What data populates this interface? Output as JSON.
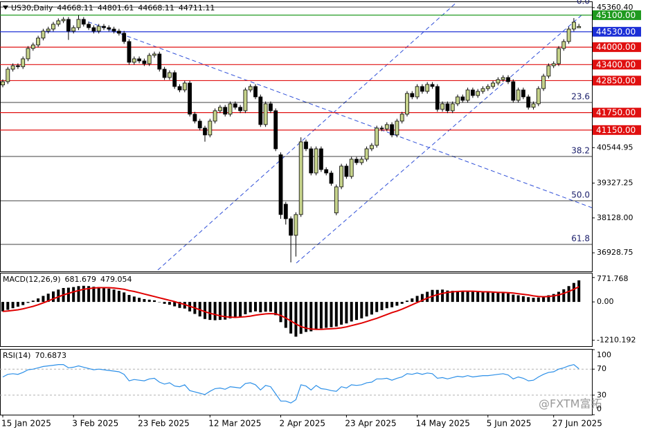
{
  "chart_data": [
    {
      "type": "candlestick",
      "title": "US30,Daily",
      "readout": [
        44668.11,
        44801.61,
        44668.11,
        44711.11
      ],
      "categories": [
        "15 Jan 2025",
        null,
        null,
        null,
        null,
        null,
        null,
        null,
        null,
        null,
        null,
        null,
        null,
        null,
        "3 Feb 2025",
        null,
        null,
        null,
        null,
        null,
        null,
        null,
        null,
        null,
        null,
        null,
        null,
        "23 Feb 2025",
        null,
        null,
        null,
        null,
        null,
        null,
        null,
        null,
        null,
        null,
        null,
        null,
        null,
        "12 Mar 2025",
        null,
        null,
        null,
        null,
        null,
        null,
        null,
        null,
        null,
        null,
        null,
        null,
        null,
        "2 Apr 2025",
        null,
        null,
        null,
        null,
        null,
        null,
        null,
        null,
        null,
        null,
        null,
        null,
        "23 Apr 2025",
        null,
        null,
        null,
        null,
        null,
        null,
        null,
        null,
        null,
        null,
        null,
        null,
        null,
        "14 May 2025",
        null,
        null,
        null,
        null,
        null,
        null,
        null,
        null,
        null,
        null,
        null,
        null,
        null,
        "5 Jun 2025",
        null,
        null,
        null,
        null,
        null,
        null,
        null,
        null,
        null,
        null,
        null,
        null,
        "27 Jun 2025",
        null,
        null,
        null,
        null,
        null
      ],
      "open": [
        42700,
        42813,
        43242,
        43361,
        43330,
        43599,
        43956,
        44075,
        44313,
        44551,
        44622,
        44789,
        44908,
        44955,
        44551,
        44670,
        44955,
        44789,
        44670,
        44551,
        44717,
        44670,
        44622,
        44551,
        44479,
        44194,
        43480,
        43599,
        43527,
        43432,
        43718,
        43765,
        43242,
        42956,
        43123,
        42647,
        42528,
        42766,
        41695,
        41457,
        41219,
        40981,
        41457,
        41814,
        41933,
        41695,
        42052,
        41933,
        41814,
        42528,
        42647,
        42290,
        41338,
        42052,
        41814,
        40300,
        38600,
        38100,
        37530,
        38244,
        40743,
        40505,
        39672,
        40505,
        39791,
        39672,
        38300,
        39196,
        39910,
        39553,
        40148,
        40029,
        40148,
        40505,
        40624,
        41219,
        41190,
        41338,
        40981,
        41457,
        41695,
        42409,
        42290,
        42647,
        42480,
        42718,
        42647,
        41861,
        42052,
        41814,
        42052,
        42290,
        42171,
        42528,
        42337,
        42480,
        42575,
        42647,
        42766,
        42885,
        42956,
        42813,
        42171,
        42528,
        42290,
        41933,
        42052,
        42575,
        43004,
        43361,
        43432,
        43956,
        44194,
        44622,
        44668.11
      ],
      "high": [
        42893,
        43322,
        43441,
        43441,
        43679,
        44036,
        44155,
        44393,
        44631,
        44702,
        44869,
        44988,
        45035,
        45035,
        44750,
        45100,
        45035,
        44869,
        44750,
        44797,
        44797,
        44750,
        44702,
        44631,
        44559,
        44274,
        43679,
        43679,
        43607,
        43798,
        43845,
        43845,
        43322,
        43203,
        43203,
        42727,
        42846,
        42846,
        41775,
        41537,
        41299,
        41537,
        41894,
        42013,
        42013,
        42132,
        42132,
        42013,
        42608,
        42727,
        42727,
        42370,
        42132,
        42132,
        41894,
        40380,
        38680,
        38180,
        38324,
        40900,
        40823,
        40585,
        40585,
        40585,
        39871,
        39752,
        39276,
        39990,
        39990,
        40228,
        40228,
        40228,
        40585,
        40704,
        41299,
        41299,
        41418,
        41418,
        41537,
        41775,
        42489,
        42489,
        42727,
        42727,
        42798,
        42798,
        42727,
        42132,
        42132,
        42132,
        42370,
        42370,
        42608,
        42608,
        42560,
        42655,
        42727,
        42846,
        42965,
        43036,
        43036,
        42893,
        42608,
        42608,
        42370,
        42132,
        42655,
        43084,
        43441,
        43512,
        44036,
        44274,
        44702,
        45000,
        44801.61
      ],
      "low": [
        42620,
        42733,
        43162,
        43250,
        43250,
        43519,
        43876,
        43995,
        44233,
        44471,
        44542,
        44709,
        44828,
        44250,
        44471,
        44590,
        44709,
        44590,
        44471,
        44471,
        44590,
        44542,
        44471,
        44399,
        44114,
        43400,
        43400,
        43447,
        43352,
        43352,
        43638,
        43162,
        42876,
        42876,
        42567,
        42448,
        42448,
        41615,
        41377,
        41139,
        40750,
        40901,
        41377,
        41734,
        41615,
        41615,
        41853,
        41734,
        41734,
        42448,
        42210,
        41258,
        41258,
        41734,
        40425,
        38100,
        37900,
        36600,
        36800,
        38164,
        40425,
        39592,
        39592,
        39711,
        39592,
        39235,
        38220,
        39116,
        39473,
        39473,
        39949,
        39949,
        40068,
        40425,
        40544,
        41110,
        41110,
        40901,
        40901,
        41377,
        41615,
        42210,
        42210,
        42400,
        42400,
        42567,
        41781,
        41781,
        41734,
        41734,
        41972,
        42091,
        42091,
        42257,
        42257,
        42400,
        42495,
        42567,
        42686,
        42805,
        42733,
        42091,
        42091,
        42210,
        41853,
        41853,
        41972,
        42495,
        42924,
        43281,
        43352,
        43876,
        44114,
        44542,
        44668.11
      ],
      "close": [
        42813,
        43242,
        43361,
        43330,
        43599,
        43956,
        44075,
        44313,
        44551,
        44622,
        44789,
        44908,
        44955,
        44551,
        44670,
        44955,
        44789,
        44670,
        44551,
        44717,
        44670,
        44622,
        44551,
        44479,
        44194,
        43480,
        43599,
        43527,
        43432,
        43718,
        43765,
        43242,
        42956,
        43123,
        42647,
        42528,
        42766,
        41695,
        41457,
        41219,
        40981,
        41457,
        41814,
        41933,
        41695,
        42052,
        41933,
        41814,
        42528,
        42647,
        42290,
        41338,
        42052,
        41814,
        40505,
        38244,
        38100,
        37530,
        38244,
        40743,
        40505,
        39672,
        40505,
        39791,
        39672,
        39315,
        39196,
        39910,
        39553,
        40148,
        40029,
        40148,
        40505,
        40624,
        41219,
        41190,
        41338,
        40981,
        41457,
        41695,
        42409,
        42290,
        42647,
        42480,
        42718,
        42647,
        41861,
        42052,
        41814,
        42052,
        42290,
        42171,
        42528,
        42337,
        42480,
        42575,
        42647,
        42766,
        42885,
        42956,
        42813,
        42171,
        42528,
        42290,
        41933,
        42052,
        42575,
        43004,
        43361,
        43432,
        43956,
        44194,
        44622,
        44860,
        44711.11
      ],
      "up_color": "#c6d38b",
      "down_color": "#000000",
      "ylim": [
        36290,
        45550
      ],
      "yticks": [
        {
          "value": 45360.4,
          "label": "45360.40"
        },
        {
          "value": 40544.95,
          "label": "40544.95"
        },
        {
          "value": 39327.25,
          "label": "39327.25"
        },
        {
          "value": 38128,
          "label": "38128.00"
        },
        {
          "value": 36928.75,
          "label": "36928.75"
        }
      ],
      "levels": [
        {
          "value": 45100,
          "label": "45100.00",
          "color": "#1f9a1f"
        },
        {
          "value": 44530,
          "label": "44530.00",
          "color": "#1c2fd6"
        },
        {
          "value": 44000,
          "label": "44000.00",
          "color": "#e01010"
        },
        {
          "value": 43400,
          "label": "43400.00",
          "color": "#e01010"
        },
        {
          "value": 42850,
          "label": "42850.00",
          "color": "#e01010"
        },
        {
          "value": 41750,
          "label": "41750.00",
          "color": "#e01010"
        },
        {
          "value": 41150,
          "label": "41150.00",
          "color": "#e01010"
        }
      ],
      "fib_levels": [
        {
          "value": 45380,
          "label": "0.0"
        },
        {
          "value": 42098,
          "label": "23.6"
        },
        {
          "value": 40242,
          "label": "38.2"
        },
        {
          "value": 38718,
          "label": "50.0"
        },
        {
          "value": 37218,
          "label": "61.8"
        }
      ]
    },
    {
      "type": "macd",
      "title": "MACD(12,26,9)",
      "readout": [
        681.679,
        479.054
      ],
      "histogram": {
        "color": "#000000",
        "values": [
          -300,
          -250,
          -200,
          -150,
          -100,
          -30,
          40,
          110,
          190,
          260,
          330,
          390,
          440,
          450,
          470,
          500,
          510,
          500,
          480,
          470,
          450,
          420,
          390,
          350,
          300,
          220,
          170,
          130,
          90,
          70,
          50,
          -10,
          -60,
          -90,
          -140,
          -190,
          -210,
          -300,
          -380,
          -460,
          -540,
          -570,
          -580,
          -570,
          -560,
          -520,
          -490,
          -460,
          -390,
          -330,
          -300,
          -330,
          -310,
          -310,
          -420,
          -640,
          -820,
          -1000,
          -1100,
          -1010,
          -950,
          -930,
          -870,
          -840,
          -820,
          -800,
          -780,
          -720,
          -680,
          -620,
          -570,
          -520,
          -460,
          -400,
          -320,
          -260,
          -200,
          -170,
          -120,
          -60,
          40,
          110,
          190,
          250,
          320,
          380,
          380,
          390,
          360,
          350,
          340,
          330,
          330,
          320,
          310,
          310,
          300,
          290,
          290,
          280,
          270,
          230,
          210,
          180,
          150,
          130,
          140,
          170,
          210,
          250,
          320,
          400,
          500,
          600,
          681.679
        ]
      },
      "signal": {
        "color": "#e00000",
        "values": [
          -300,
          -290,
          -270,
          -250,
          -220,
          -180,
          -140,
          -90,
          -30,
          30,
          100,
          160,
          220,
          270,
          320,
          360,
          400,
          420,
          440,
          450,
          450,
          450,
          440,
          420,
          400,
          360,
          330,
          290,
          250,
          210,
          170,
          130,
          90,
          50,
          10,
          -40,
          -80,
          -140,
          -190,
          -250,
          -310,
          -360,
          -400,
          -440,
          -470,
          -480,
          -490,
          -480,
          -470,
          -450,
          -420,
          -400,
          -380,
          -370,
          -380,
          -430,
          -510,
          -600,
          -700,
          -780,
          -830,
          -860,
          -870,
          -870,
          -860,
          -850,
          -840,
          -820,
          -790,
          -750,
          -710,
          -670,
          -620,
          -570,
          -520,
          -460,
          -400,
          -340,
          -290,
          -230,
          -160,
          -90,
          -20,
          50,
          120,
          180,
          230,
          270,
          300,
          320,
          330,
          340,
          340,
          340,
          330,
          320,
          320,
          310,
          300,
          300,
          290,
          280,
          260,
          240,
          220,
          190,
          170,
          165,
          170,
          190,
          220,
          270,
          330,
          400,
          479.054
        ]
      },
      "ylim": [
        -1400,
        900
      ],
      "yticks": [
        771.768,
        {
          "value": 0,
          "label": "0.00"
        },
        -1210.192
      ]
    },
    {
      "type": "line",
      "title": "RSI(14)",
      "readout": [
        70.6873
      ],
      "color": "#2b8fe8",
      "values": [
        58,
        62,
        63,
        62,
        65,
        69,
        70,
        72,
        74,
        75,
        76,
        77,
        77,
        72,
        73,
        75,
        73,
        71,
        69,
        70,
        69,
        68,
        67,
        66,
        62,
        52,
        54,
        53,
        52,
        55,
        56,
        50,
        47,
        49,
        44,
        43,
        46,
        37,
        35,
        33,
        31,
        36,
        40,
        41,
        39,
        43,
        42,
        41,
        48,
        49,
        46,
        38,
        45,
        43,
        32,
        21,
        21,
        18,
        23,
        46,
        44,
        38,
        45,
        40,
        39,
        37,
        36,
        43,
        41,
        46,
        45,
        46,
        49,
        50,
        55,
        55,
        56,
        53,
        56,
        58,
        63,
        62,
        64,
        62,
        64,
        63,
        56,
        57,
        55,
        57,
        59,
        58,
        60,
        58,
        59,
        60,
        60,
        61,
        62,
        63,
        61,
        55,
        58,
        56,
        52,
        53,
        58,
        62,
        65,
        66,
        70,
        72,
        75,
        77,
        70.6873
      ],
      "ylim": [
        0,
        100
      ],
      "yticks": [
        100,
        70,
        30,
        0
      ],
      "levels": [
        70,
        30
      ],
      "watermark": "@FXTM富拓"
    }
  ]
}
